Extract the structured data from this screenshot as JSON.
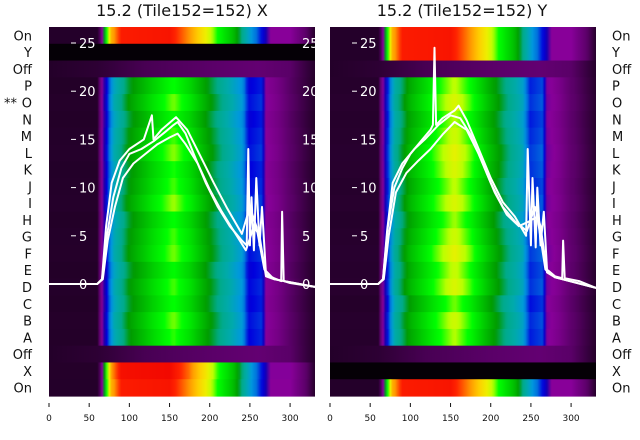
{
  "chart_data": {
    "type": "heatmap",
    "colormap": "nipy_spectral",
    "row_labels": [
      "On",
      "Y",
      "Off",
      "P",
      "O",
      "N",
      "M",
      "L",
      "K",
      "J",
      "I",
      "H",
      "G",
      "F",
      "E",
      "D",
      "C",
      "B",
      "A",
      "Off",
      "X",
      "On"
    ],
    "row_label_marker": {
      "row": 4,
      "text": "**",
      "panel": 0
    },
    "x_ticks": [
      0,
      50,
      100,
      150,
      200,
      250,
      300
    ],
    "x_range": [
      0,
      331
    ],
    "y_ticks": [
      0,
      5,
      10,
      15,
      20,
      25
    ],
    "y_range_line": [
      0,
      25
    ],
    "profiles": {
      "normal": [
        [
          0,
          0.02
        ],
        [
          60,
          0.02
        ],
        [
          65,
          0.08
        ],
        [
          72,
          0.2
        ],
        [
          80,
          0.33
        ],
        [
          100,
          0.45
        ],
        [
          130,
          0.55
        ],
        [
          155,
          0.62
        ],
        [
          175,
          0.56
        ],
        [
          200,
          0.45
        ],
        [
          220,
          0.37
        ],
        [
          240,
          0.3
        ],
        [
          248,
          0.2
        ],
        [
          265,
          0.22
        ],
        [
          270,
          0.1
        ],
        [
          285,
          0.08
        ],
        [
          300,
          0.05
        ],
        [
          331,
          0.02
        ]
      ],
      "bright": [
        [
          0,
          0.02
        ],
        [
          62,
          0.02
        ],
        [
          66,
          0.1
        ],
        [
          70,
          0.55
        ],
        [
          78,
          0.78
        ],
        [
          90,
          0.86
        ],
        [
          150,
          0.87
        ],
        [
          175,
          0.8
        ],
        [
          195,
          0.7
        ],
        [
          210,
          0.6
        ],
        [
          230,
          0.5
        ],
        [
          245,
          0.35
        ],
        [
          258,
          0.25
        ],
        [
          268,
          0.18
        ],
        [
          275,
          0.1
        ],
        [
          300,
          0.1
        ],
        [
          320,
          0.05
        ],
        [
          331,
          0.02
        ]
      ],
      "off": [
        [
          0,
          0.02
        ],
        [
          60,
          0.025
        ],
        [
          120,
          0.04
        ],
        [
          200,
          0.05
        ],
        [
          260,
          0.06
        ],
        [
          300,
          0.05
        ],
        [
          331,
          0.02
        ]
      ],
      "black": [
        [
          0,
          0.003
        ],
        [
          331,
          0.003
        ]
      ]
    },
    "panels": [
      {
        "title": "15.2 (Tile152=152) X",
        "row_modes": [
          "bright",
          "black",
          "off",
          "normal",
          "normal",
          "normal",
          "normal",
          "normal",
          "normal",
          "normal",
          "normal",
          "normal",
          "normal",
          "normal",
          "normal",
          "normal",
          "normal",
          "normal",
          "normal",
          "off",
          "bright",
          "bright"
        ],
        "row_levels": [
          1,
          1,
          1,
          0.97,
          1.02,
          0.96,
          1.0,
          1.03,
          0.98,
          1.0,
          1.04,
          0.97,
          1.0,
          1.02,
          0.96,
          1.0,
          0.97,
          1.02,
          0.99,
          1,
          1.02,
          1
        ],
        "series": [
          {
            "name": "trace-1",
            "x": [
              0,
              60,
              66,
              72,
              80,
              90,
              100,
              115,
              130,
              145,
              155,
              160,
              170,
              180,
              195,
              210,
              225,
              240,
              246,
              248,
              250,
              252,
              255,
              258,
              262,
              265,
              270,
              280,
              289,
              290,
              292,
              300,
              331
            ],
            "y": [
              0,
              0,
              0.5,
              5,
              9,
              12,
              13.5,
              14,
              14.8,
              15.8,
              16.5,
              16.8,
              15.6,
              13.5,
              10.5,
              8,
              6,
              4.5,
              4,
              14,
              4,
              9,
              3.5,
              11,
              4,
              8,
              1,
              0.6,
              0.3,
              7.5,
              0.3,
              0.1,
              -0.3
            ]
          },
          {
            "name": "trace-2",
            "x": [
              0,
              60,
              67,
              73,
              82,
              92,
              105,
              120,
              135,
              150,
              160,
              170,
              185,
              200,
              215,
              230,
              245,
              255,
              262,
              270,
              280,
              331
            ],
            "y": [
              0,
              0,
              0.5,
              4.5,
              8,
              11,
              12.5,
              13.5,
              14.5,
              15.2,
              15.6,
              14.5,
              12.5,
              9.8,
              7.5,
              5.5,
              3.5,
              6,
              5,
              0.8,
              0.5,
              -0.3
            ]
          },
          {
            "name": "trace-3",
            "x": [
              0,
              60,
              66,
              71,
              78,
              88,
              100,
              118,
              128,
              130,
              140,
              158,
              172,
              190,
              205,
              222,
              240,
              250,
              258,
              268,
              280,
              331
            ],
            "y": [
              0,
              0,
              0.5,
              6,
              10.5,
              12.8,
              14,
              15,
              17.5,
              15,
              16,
              17.3,
              16,
              13,
              10.5,
              7.8,
              5.2,
              8,
              6,
              1.5,
              0.5,
              -0.3
            ]
          }
        ]
      },
      {
        "title": "15.2 (Tile152=152) Y",
        "row_modes": [
          "bright",
          "bright",
          "off",
          "normal",
          "normal",
          "normal",
          "normal",
          "normal",
          "normal",
          "normal",
          "normal",
          "normal",
          "normal",
          "normal",
          "normal",
          "normal",
          "normal",
          "normal",
          "normal",
          "off",
          "black",
          "bright"
        ],
        "row_levels": [
          1,
          1,
          1,
          1.06,
          1.1,
          1.05,
          1.08,
          1.12,
          1.1,
          1.06,
          1.1,
          1.04,
          1.08,
          1.12,
          1.07,
          1.1,
          1.02,
          1.08,
          1.05,
          1,
          1,
          1
        ],
        "series": [
          {
            "name": "trace-1",
            "x": [
              0,
              60,
              66,
              72,
              80,
              90,
              100,
              115,
              125,
              128,
              130,
              132,
              140,
              155,
              160,
              170,
              185,
              200,
              215,
              230,
              244,
              246,
              250,
              252,
              256,
              258,
              262,
              266,
              270,
              280,
              289,
              290,
              292,
              310,
              331
            ],
            "y": [
              0,
              0,
              0.5,
              6,
              10,
              12,
              13.5,
              15,
              16,
              16.5,
              24.5,
              16.5,
              17.2,
              18,
              18.5,
              17,
              14,
              11,
              8.5,
              7,
              5,
              14,
              4,
              11,
              3.8,
              10,
              4,
              7.5,
              1.5,
              0.8,
              0.6,
              4.5,
              0.6,
              0.3,
              -0.4
            ]
          },
          {
            "name": "trace-2",
            "x": [
              0,
              60,
              67,
              73,
              82,
              95,
              110,
              125,
              140,
              155,
              170,
              185,
              200,
              215,
              230,
              245,
              255,
              262,
              270,
              280,
              331
            ],
            "y": [
              0,
              0,
              0.5,
              5,
              9.5,
              11.5,
              12.8,
              14,
              15.5,
              16.8,
              16,
              13.5,
              10.5,
              8,
              6.5,
              5.5,
              8,
              6,
              1.2,
              0.7,
              -0.4
            ]
          },
          {
            "name": "trace-3",
            "x": [
              0,
              60,
              66,
              71,
              78,
              90,
              105,
              118,
              135,
              150,
              162,
              175,
              190,
              205,
              220,
              235,
              248,
              258,
              268,
              280,
              331
            ],
            "y": [
              0,
              0,
              0.5,
              5.5,
              10.5,
              12.5,
              14,
              15,
              16.5,
              17.5,
              17.2,
              15.5,
              12.5,
              9.5,
              7.2,
              6,
              6.5,
              7,
              1.5,
              0.7,
              -0.4
            ]
          }
        ]
      }
    ]
  }
}
